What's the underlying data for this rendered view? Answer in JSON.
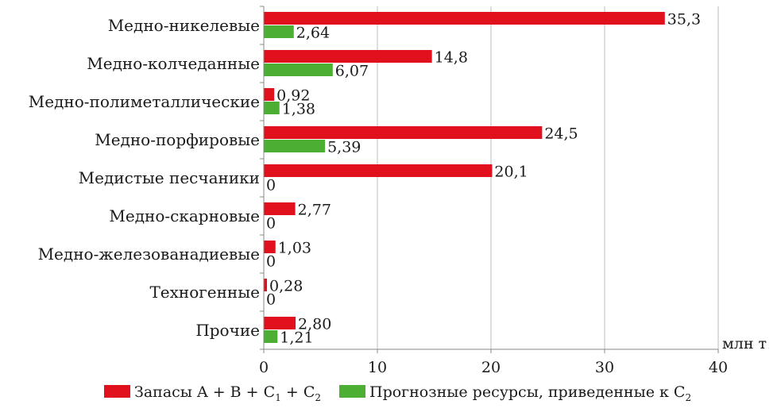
{
  "chart_data": {
    "type": "bar",
    "orientation": "horizontal",
    "categories": [
      "Медно-никелевые",
      "Медно-колчеданные",
      "Медно-полиметаллические",
      "Медно-порфировые",
      "Медистые песчаники",
      "Медно-скарновые",
      "Медно-железованадиевые",
      "Техногенные",
      "Прочие"
    ],
    "series": [
      {
        "name": "Запасы A + B + C1 + C2",
        "color": "#e0101c",
        "values": [
          35.3,
          14.8,
          0.92,
          24.5,
          20.1,
          2.77,
          1.03,
          0.28,
          2.8
        ],
        "labels": [
          "35,3",
          "14,8",
          "0,92",
          "24,5",
          "20,1",
          "2,77",
          "1,03",
          "0,28",
          "2,80"
        ]
      },
      {
        "name": "Прогнозные ресурсы, приведенные к C2",
        "color": "#4caf34",
        "values": [
          2.64,
          6.07,
          1.38,
          5.39,
          0,
          0,
          0,
          0,
          1.21
        ],
        "labels": [
          "2,64",
          "6,07",
          "1,38",
          "5,39",
          "0",
          "0",
          "0",
          "0",
          "1,21"
        ]
      }
    ],
    "xlim": [
      0,
      40
    ],
    "xticks": [
      "0",
      "10",
      "20",
      "30",
      "40"
    ],
    "xticks_values": [
      0,
      10,
      20,
      30,
      40
    ],
    "xlabel": "млн т",
    "grid": true,
    "legend_position": "bottom",
    "legend": [
      {
        "parts": [
          "Запасы A + B + C",
          "1",
          " + C",
          "2"
        ]
      },
      {
        "parts": [
          "Прогнозные ресурсы, приведенные к C",
          "2"
        ]
      }
    ]
  }
}
